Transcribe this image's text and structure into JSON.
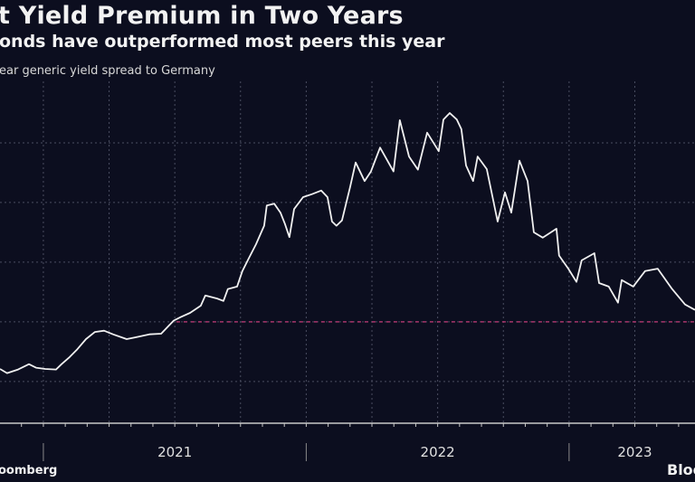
{
  "chart_data": {
    "type": "line",
    "title": "t Yield Premium in Two Years",
    "subtitle": "onds have outperformed most peers this year",
    "ylabel": "ear generic yield spread to Germany",
    "xlabel": "",
    "x_tick_labels": [
      {
        "label": "2021",
        "x": 2021.5
      },
      {
        "label": "2022",
        "x": 2022.5
      },
      {
        "label": "2023",
        "x": 2023.25
      }
    ],
    "year_dividers": [
      2021,
      2022,
      2023
    ],
    "xlim": [
      2020.835,
      2023.479
    ],
    "ylim": [
      0.3,
      6.03
    ],
    "y_gridlines": [
      1,
      2,
      3,
      4,
      5
    ],
    "y_tick_labels_visible": false,
    "grid": true,
    "reference_line": {
      "y": 2,
      "x_start": 2021.506,
      "color": "#a8356b",
      "style": "dashed"
    },
    "line_color": "#f0f0f0",
    "background": "#0c0e1f",
    "series": [
      {
        "points": [
          [
            2020.835,
            1.21
          ],
          [
            2020.862,
            1.14
          ],
          [
            2020.904,
            1.2
          ],
          [
            2020.945,
            1.29
          ],
          [
            2020.972,
            1.23
          ],
          [
            2021.007,
            1.21
          ],
          [
            2021.048,
            1.2
          ],
          [
            2021.069,
            1.29
          ],
          [
            2021.1,
            1.41
          ],
          [
            2021.127,
            1.53
          ],
          [
            2021.162,
            1.71
          ],
          [
            2021.196,
            1.83
          ],
          [
            2021.231,
            1.85
          ],
          [
            2021.265,
            1.79
          ],
          [
            2021.317,
            1.71
          ],
          [
            2021.351,
            1.74
          ],
          [
            2021.403,
            1.79
          ],
          [
            2021.448,
            1.8
          ],
          [
            2021.472,
            1.91
          ],
          [
            2021.496,
            2.02
          ],
          [
            2021.523,
            2.08
          ],
          [
            2021.558,
            2.15
          ],
          [
            2021.599,
            2.27
          ],
          [
            2021.616,
            2.44
          ],
          [
            2021.661,
            2.39
          ],
          [
            2021.685,
            2.35
          ],
          [
            2021.702,
            2.55
          ],
          [
            2021.737,
            2.59
          ],
          [
            2021.757,
            2.85
          ],
          [
            2021.781,
            3.06
          ],
          [
            2021.809,
            3.3
          ],
          [
            2021.84,
            3.61
          ],
          [
            2021.85,
            3.95
          ],
          [
            2021.878,
            3.98
          ],
          [
            2021.902,
            3.83
          ],
          [
            2021.919,
            3.64
          ],
          [
            2021.936,
            3.42
          ],
          [
            2021.954,
            3.89
          ],
          [
            2021.988,
            4.09
          ],
          [
            2022.022,
            4.14
          ],
          [
            2022.057,
            4.2
          ],
          [
            2022.081,
            4.09
          ],
          [
            2022.098,
            3.68
          ],
          [
            2022.115,
            3.61
          ],
          [
            2022.136,
            3.7
          ],
          [
            2022.167,
            4.26
          ],
          [
            2022.188,
            4.67
          ],
          [
            2022.222,
            4.36
          ],
          [
            2022.246,
            4.52
          ],
          [
            2022.281,
            4.92
          ],
          [
            2022.332,
            4.52
          ],
          [
            2022.356,
            5.38
          ],
          [
            2022.391,
            4.77
          ],
          [
            2022.425,
            4.55
          ],
          [
            2022.46,
            5.17
          ],
          [
            2022.504,
            4.86
          ],
          [
            2022.522,
            5.39
          ],
          [
            2022.546,
            5.5
          ],
          [
            2022.573,
            5.39
          ],
          [
            2022.59,
            5.23
          ],
          [
            2022.608,
            4.62
          ],
          [
            2022.635,
            4.36
          ],
          [
            2022.652,
            4.77
          ],
          [
            2022.687,
            4.56
          ],
          [
            2022.728,
            3.68
          ],
          [
            2022.756,
            4.17
          ],
          [
            2022.78,
            3.83
          ],
          [
            2022.811,
            4.7
          ],
          [
            2022.842,
            4.36
          ],
          [
            2022.866,
            3.5
          ],
          [
            2022.9,
            3.41
          ],
          [
            2022.952,
            3.56
          ],
          [
            2022.962,
            3.11
          ],
          [
            2022.997,
            2.89
          ],
          [
            2023.028,
            2.67
          ],
          [
            2023.048,
            3.03
          ],
          [
            2023.096,
            3.15
          ],
          [
            2023.114,
            2.65
          ],
          [
            2023.151,
            2.59
          ],
          [
            2023.186,
            2.32
          ],
          [
            2023.2,
            2.7
          ],
          [
            2023.244,
            2.59
          ],
          [
            2023.289,
            2.85
          ],
          [
            2023.337,
            2.89
          ],
          [
            2023.392,
            2.55
          ],
          [
            2023.441,
            2.29
          ],
          [
            2023.479,
            2.2
          ]
        ]
      }
    ]
  },
  "footer": {
    "source": "oomberg",
    "brand": "Bloo"
  }
}
